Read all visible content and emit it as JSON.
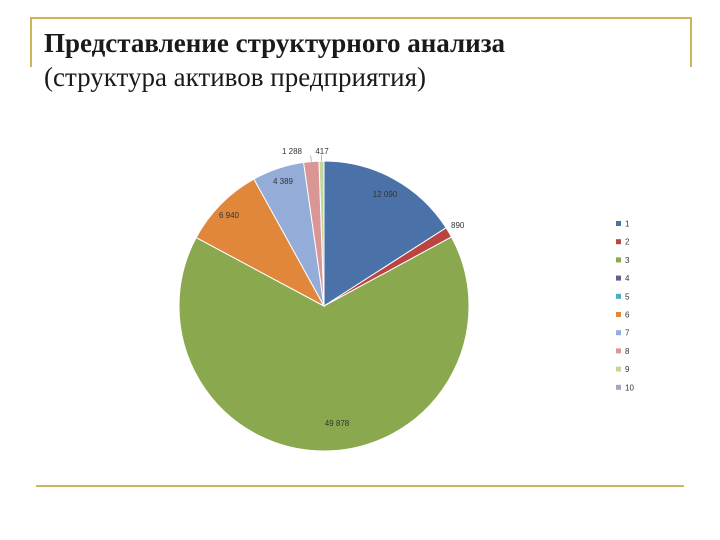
{
  "slide": {
    "title_line1": "Представление структурного анализа",
    "title_line2": "(структура активов предприятия)"
  },
  "colors": {
    "frame": "#cdb65a"
  },
  "chart_data": {
    "type": "pie",
    "start_angle_deg": 0,
    "direction": "clockwise",
    "legend_position": "right",
    "slices": [
      {
        "label": "1",
        "value": 12090,
        "value_label": "12 090",
        "color": "#4a72a8"
      },
      {
        "label": "2",
        "value": 890,
        "value_label": "890",
        "color": "#b94442"
      },
      {
        "label": "3",
        "value": 49878,
        "value_label": "49 878",
        "color": "#8aa84e"
      },
      {
        "label": "4",
        "value": 0,
        "value_label": "",
        "color": "#6c5a8e"
      },
      {
        "label": "5",
        "value": 0,
        "value_label": "",
        "color": "#4bacc6"
      },
      {
        "label": "6",
        "value": 6940,
        "value_label": "6 940",
        "color": "#e0873c"
      },
      {
        "label": "7",
        "value": 4389,
        "value_label": "4 389",
        "color": "#94acd8"
      },
      {
        "label": "8",
        "value": 1288,
        "value_label": "1 288",
        "color": "#d99694"
      },
      {
        "label": "9",
        "value": 417,
        "value_label": "417",
        "color": "#c4d79b"
      },
      {
        "label": "10",
        "value": 0,
        "value_label": "",
        "color": "#a5a5c5"
      }
    ]
  }
}
